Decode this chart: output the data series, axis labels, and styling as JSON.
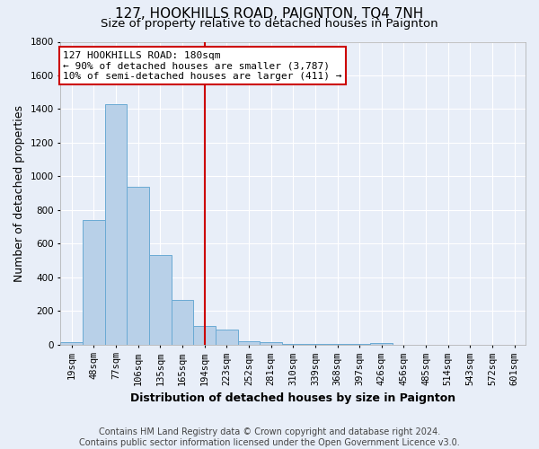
{
  "title": "127, HOOKHILLS ROAD, PAIGNTON, TQ4 7NH",
  "subtitle": "Size of property relative to detached houses in Paignton",
  "xlabel": "Distribution of detached houses by size in Paignton",
  "ylabel": "Number of detached properties",
  "footnote1": "Contains HM Land Registry data © Crown copyright and database right 2024.",
  "footnote2": "Contains public sector information licensed under the Open Government Licence v3.0.",
  "annotation_line1": "127 HOOKHILLS ROAD: 180sqm",
  "annotation_line2": "← 90% of detached houses are smaller (3,787)",
  "annotation_line3": "10% of semi-detached houses are larger (411) →",
  "bin_labels": [
    "19sqm",
    "48sqm",
    "77sqm",
    "106sqm",
    "135sqm",
    "165sqm",
    "194sqm",
    "223sqm",
    "252sqm",
    "281sqm",
    "310sqm",
    "339sqm",
    "368sqm",
    "397sqm",
    "426sqm",
    "456sqm",
    "485sqm",
    "514sqm",
    "543sqm",
    "572sqm",
    "601sqm"
  ],
  "bar_heights": [
    15,
    740,
    1430,
    940,
    530,
    265,
    110,
    90,
    20,
    12,
    5,
    5,
    3,
    3,
    10,
    0,
    0,
    0,
    0,
    0,
    0
  ],
  "bar_color": "#b8d0e8",
  "bar_edge_color": "#6aaad4",
  "red_line_index": 6,
  "red_line_color": "#cc0000",
  "ylim": [
    0,
    1800
  ],
  "annotation_box_color": "#ffffff",
  "annotation_box_edge": "#cc0000",
  "bg_color": "#e8eef8",
  "grid_color": "#ffffff",
  "title_fontsize": 11,
  "subtitle_fontsize": 9.5,
  "axis_label_fontsize": 9,
  "xlabel_fontsize": 9,
  "tick_fontsize": 7.5,
  "footnote_fontsize": 7,
  "annotation_fontsize": 8
}
